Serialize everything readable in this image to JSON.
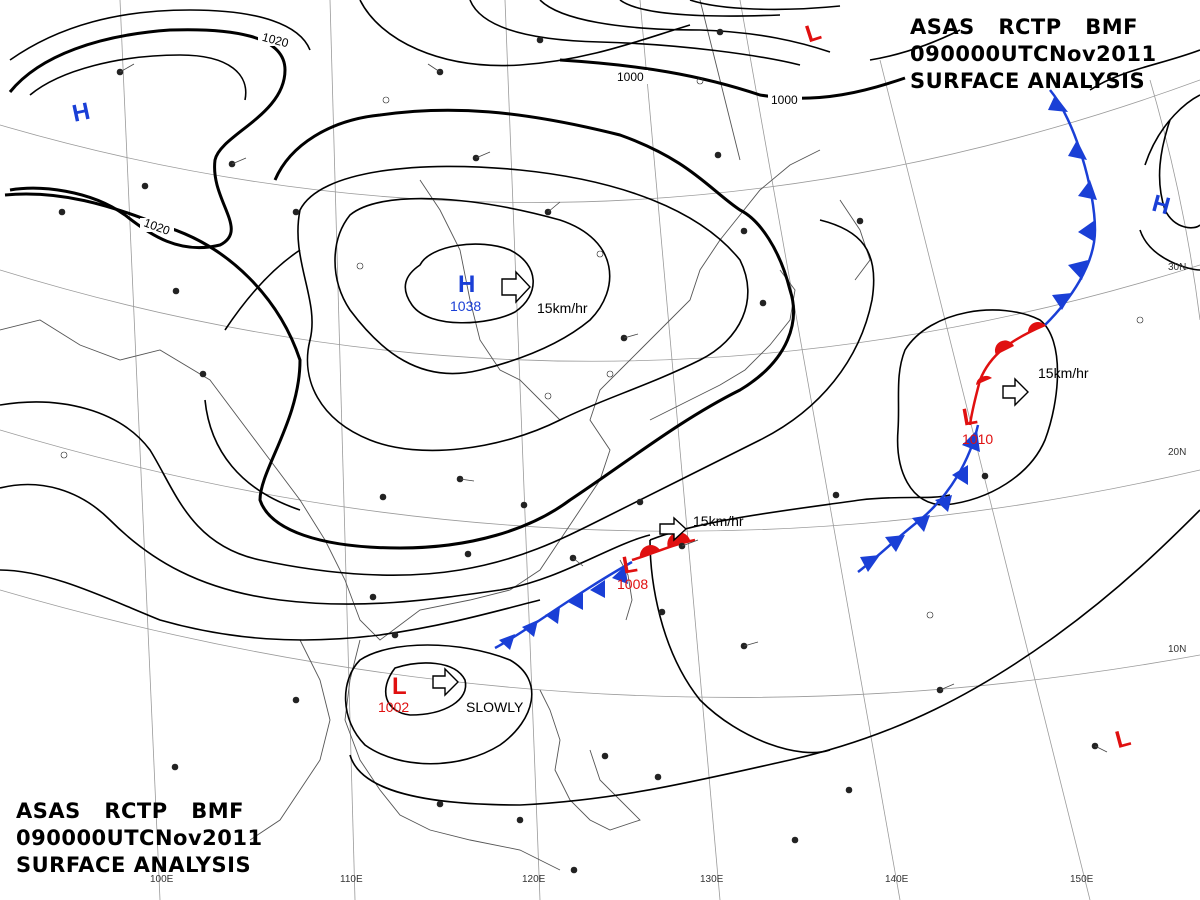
{
  "header": {
    "line1": [
      "ASAS",
      "RCTP",
      "BMF"
    ],
    "line2": [
      "090000UTC",
      "Nov",
      "2011"
    ],
    "line3": "SURFACE ANALYSIS"
  },
  "longitude_labels": [
    "110E",
    "120E",
    "130E",
    "140E",
    "150E",
    "100E"
  ],
  "latitude_labels": [
    "30N",
    "20N",
    "10N"
  ],
  "isobar_labels": [
    "1020",
    "1020",
    "1000",
    "1000"
  ],
  "pressure_systems": [
    {
      "type": "H",
      "value": "",
      "color": "#1a3fd6"
    },
    {
      "type": "H",
      "value": "1038",
      "color": "#1a3fd6"
    },
    {
      "type": "H",
      "value": "",
      "color": "#1a3fd6"
    },
    {
      "type": "L",
      "value": "",
      "color": "#e01010"
    },
    {
      "type": "L",
      "value": "1010",
      "color": "#e01010"
    },
    {
      "type": "L",
      "value": "1008",
      "color": "#e01010"
    },
    {
      "type": "L",
      "value": "1002",
      "color": "#e01010"
    },
    {
      "type": "L",
      "value": "",
      "color": "#e01010"
    }
  ],
  "movements": [
    "15km/hr",
    "15km/hr",
    "15km/hr",
    "SLOWLY"
  ],
  "colors": {
    "cold_front": "#1a3fd6",
    "warm_front": "#e01010",
    "isobar": "#000000",
    "coast": "#555555"
  }
}
